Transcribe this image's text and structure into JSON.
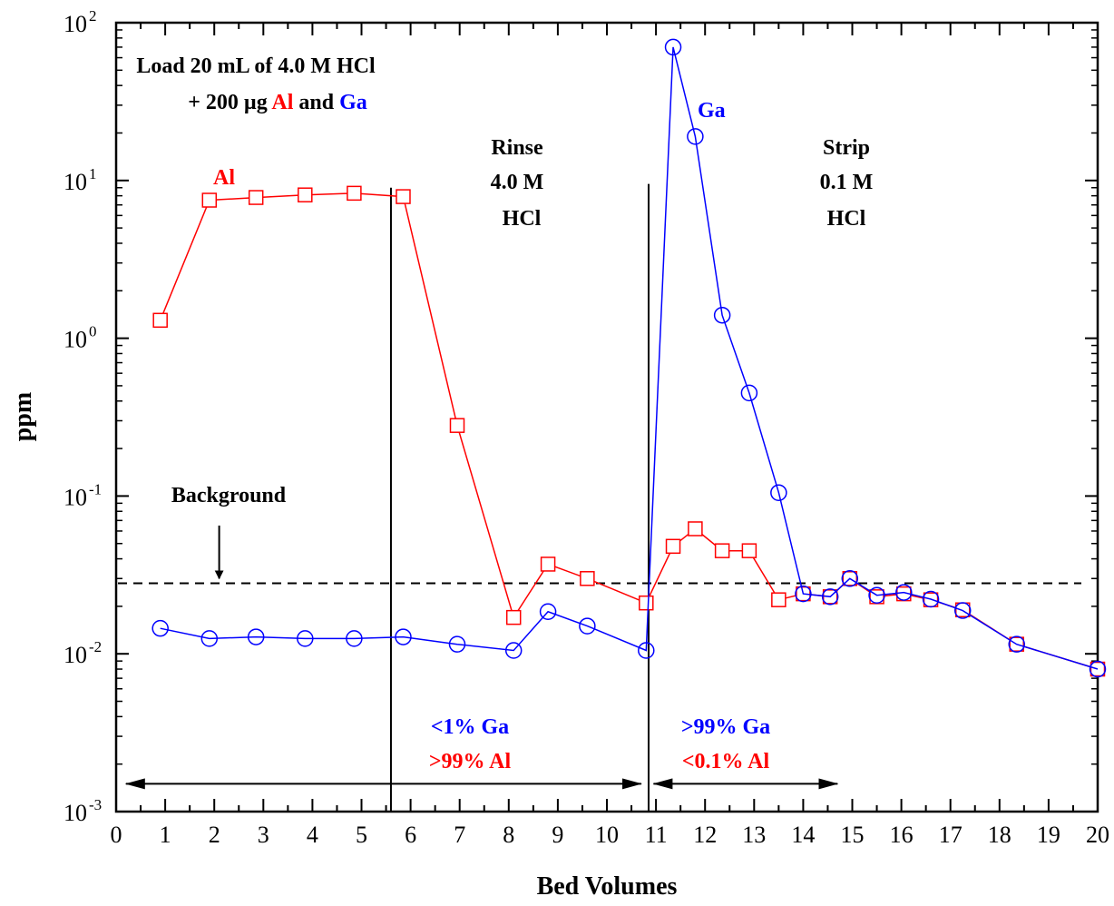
{
  "chart_data": {
    "type": "line",
    "xlabel": "Bed Volumes",
    "ylabel": "ppm",
    "xlim": [
      0,
      20
    ],
    "ylim": [
      0.001,
      100
    ],
    "yscale": "log",
    "x_ticks": [
      "0",
      "1",
      "2",
      "3",
      "4",
      "5",
      "6",
      "7",
      "8",
      "9",
      "10",
      "11",
      "12",
      "13",
      "14",
      "15",
      "16",
      "17",
      "18",
      "19",
      "20"
    ],
    "y_ticks": [
      {
        "base": "10",
        "exp": "-3",
        "value": 0.001
      },
      {
        "base": "10",
        "exp": "-2",
        "value": 0.01
      },
      {
        "base": "10",
        "exp": "-1",
        "value": 0.1
      },
      {
        "base": "10",
        "exp": "0",
        "value": 1
      },
      {
        "base": "10",
        "exp": "1",
        "value": 10
      },
      {
        "base": "10",
        "exp": "2",
        "value": 100
      }
    ],
    "grid": false,
    "legend": "none",
    "series": [
      {
        "name": "Al",
        "color": "#ff0000",
        "marker": "square",
        "x": [
          0.9,
          1.9,
          2.85,
          3.85,
          4.85,
          5.85,
          6.95,
          8.1,
          8.8,
          9.6,
          10.8,
          11.35,
          11.8,
          12.35,
          12.9,
          13.5,
          14.0,
          14.55,
          14.95,
          15.5,
          16.05,
          16.6,
          17.25,
          18.35,
          20.0
        ],
        "values": [
          1.3,
          7.5,
          7.8,
          8.1,
          8.3,
          7.9,
          0.28,
          0.017,
          0.037,
          0.03,
          0.021,
          0.048,
          0.062,
          0.045,
          0.045,
          0.022,
          0.024,
          0.023,
          0.03,
          0.023,
          0.024,
          0.022,
          0.019,
          0.0115,
          0.008
        ]
      },
      {
        "name": "Ga",
        "color": "#0000ff",
        "marker": "circle",
        "x": [
          0.9,
          1.9,
          2.85,
          3.85,
          4.85,
          5.85,
          6.95,
          8.1,
          8.8,
          9.6,
          10.8,
          11.35,
          11.8,
          12.35,
          12.9,
          13.5,
          14.0,
          14.55,
          14.95,
          15.5,
          16.05,
          16.6,
          17.25,
          18.35,
          20.0
        ],
        "values": [
          0.0145,
          0.0125,
          0.0128,
          0.0125,
          0.0125,
          0.0128,
          0.0115,
          0.0105,
          0.0185,
          0.015,
          0.0105,
          70,
          19,
          1.4,
          0.45,
          0.105,
          0.024,
          0.023,
          0.03,
          0.0235,
          0.0245,
          0.0222,
          0.0188,
          0.0115,
          0.008
        ]
      }
    ],
    "background_level": 0.028,
    "vertical_lines": [
      {
        "x": 5.6,
        "y_top": 9
      },
      {
        "x": 10.85,
        "y_top": 9.5
      }
    ],
    "arrows": {
      "background_arrow": {
        "x": 2.1,
        "y_from": 0.065,
        "y_to": 0.03
      },
      "segment_left": {
        "x_from": 0.2,
        "x_to": 10.7,
        "y": 0.0015
      },
      "segment_right": {
        "x_from": 10.95,
        "x_to": 14.7,
        "y": 0.0015
      }
    },
    "annotations": {
      "load_line1": "Load 20 mL of 4.0 M HCl",
      "load_line2_prefix": "+ 200 µg ",
      "load_line2_al": "Al",
      "load_line2_and": " and ",
      "load_line2_ga": "Ga",
      "al_label": "Al",
      "ga_label": "Ga",
      "rinse": [
        "Rinse",
        "4.0 M",
        "HCl"
      ],
      "strip": [
        "Strip",
        "0.1 M",
        "HCl"
      ],
      "background": "Background",
      "left_ga": "<1% Ga",
      "left_al": ">99% Al",
      "right_ga": ">99% Ga",
      "right_al": "<0.1% Al"
    }
  }
}
